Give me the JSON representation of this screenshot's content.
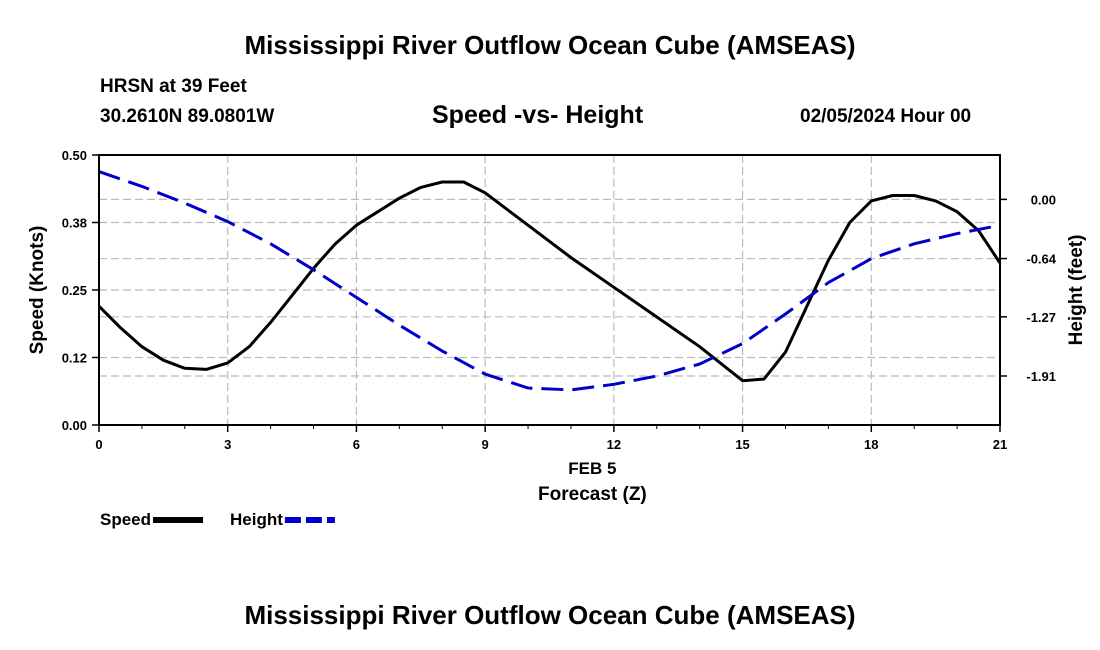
{
  "header": {
    "title": "Mississippi River Outflow Ocean Cube (AMSEAS)",
    "station": "HRSN at 39 Feet",
    "coordinates": "30.2610N  89.0801W",
    "datetime": "02/05/2024 Hour 00",
    "footer_title": "Mississippi River Outflow Ocean Cube (AMSEAS)"
  },
  "chart_data": {
    "type": "line",
    "title": "Speed -vs- Height",
    "date_label": "FEB 5",
    "xlabel": "Forecast (Z)",
    "ylabel_left": "Speed (Knots)",
    "ylabel_right": "Height (feet)",
    "xlim": [
      0,
      21
    ],
    "x_ticks": [
      0,
      3,
      6,
      9,
      12,
      15,
      18,
      21
    ],
    "ylim_left": [
      0,
      0.5
    ],
    "y_ticks_left": [
      "0.00",
      "0.12",
      "0.25",
      "0.38",
      "0.50"
    ],
    "y_tick_values_left": [
      0,
      0.125,
      0.25,
      0.375,
      0.5
    ],
    "ylim_right": [
      -2.44,
      0.48
    ],
    "y_ticks_right": [
      "0.00",
      "-0.64",
      "-1.27",
      "-1.91"
    ],
    "y_tick_values_right": [
      0,
      -0.64,
      -1.27,
      -1.91
    ],
    "grid": true,
    "series": [
      {
        "name": "Speed",
        "axis": "left",
        "color": "#000000",
        "dash": "solid",
        "x": [
          0,
          0.5,
          1,
          1.5,
          2,
          2.5,
          3,
          3.5,
          4,
          4.5,
          5,
          5.5,
          6,
          6.5,
          7,
          7.5,
          8,
          8.5,
          9,
          10,
          11,
          12,
          13,
          14,
          15,
          15.5,
          16,
          16.5,
          17,
          17.5,
          18,
          18.5,
          19,
          19.5,
          20,
          20.5,
          21
        ],
        "values": [
          0.22,
          0.18,
          0.145,
          0.12,
          0.105,
          0.103,
          0.115,
          0.145,
          0.19,
          0.24,
          0.29,
          0.335,
          0.37,
          0.395,
          0.42,
          0.44,
          0.45,
          0.45,
          0.43,
          0.37,
          0.31,
          0.255,
          0.2,
          0.145,
          0.082,
          0.085,
          0.135,
          0.22,
          0.305,
          0.375,
          0.415,
          0.425,
          0.425,
          0.415,
          0.395,
          0.36,
          0.3
        ]
      },
      {
        "name": "Height",
        "axis": "right",
        "color": "#0000c8",
        "dash": "dashed",
        "x": [
          0,
          1,
          2,
          3,
          4,
          5,
          6,
          7,
          8,
          9,
          10,
          11,
          12,
          13,
          14,
          15,
          16,
          17,
          18,
          19,
          20,
          21
        ],
        "values": [
          0.3,
          0.14,
          -0.04,
          -0.24,
          -0.48,
          -0.76,
          -1.06,
          -1.36,
          -1.64,
          -1.89,
          -2.04,
          -2.06,
          -2.0,
          -1.91,
          -1.78,
          -1.56,
          -1.24,
          -0.9,
          -0.64,
          -0.48,
          -0.37,
          -0.28
        ]
      }
    ],
    "legend": [
      {
        "label": "Speed",
        "color": "#000000",
        "dash": "solid"
      },
      {
        "label": "Height",
        "color": "#0000c8",
        "dash": "dashed"
      }
    ]
  }
}
